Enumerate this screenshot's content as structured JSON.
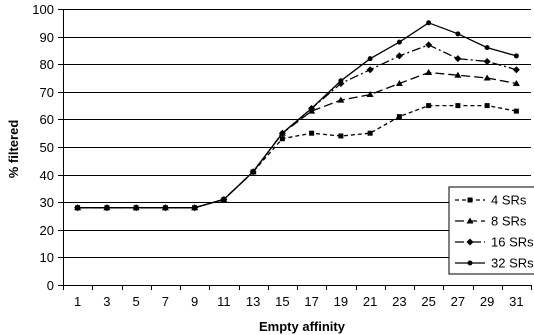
{
  "chart_data": {
    "type": "line",
    "xlabel": "Empty affinity",
    "ylabel": "% filtered",
    "xlim": [
      0,
      32
    ],
    "ylim": [
      0,
      100
    ],
    "x_ticks": [
      1,
      3,
      5,
      7,
      9,
      11,
      13,
      15,
      17,
      19,
      21,
      23,
      25,
      27,
      29,
      31
    ],
    "y_ticks": [
      0,
      10,
      20,
      30,
      40,
      50,
      60,
      70,
      80,
      90,
      100
    ],
    "grid": "horizontal",
    "legend_position": "bottom-right",
    "x": [
      1,
      3,
      5,
      7,
      9,
      11,
      13,
      15,
      17,
      19,
      21,
      23,
      25,
      27,
      29,
      31
    ],
    "series": [
      {
        "name": "4 SRs",
        "marker": "square",
        "dash": "4,3",
        "values": [
          28,
          28,
          28,
          28,
          28,
          31,
          41,
          53,
          55,
          54,
          55,
          61,
          65,
          65,
          65,
          63
        ]
      },
      {
        "name": "8 SRs",
        "marker": "triangle",
        "dash": "9,4",
        "values": [
          28,
          28,
          28,
          28,
          28,
          31,
          41,
          55,
          63,
          67,
          69,
          73,
          77,
          76,
          75,
          73
        ]
      },
      {
        "name": "16 SRs",
        "marker": "diamond",
        "dash": "9,3,2,3",
        "values": [
          28,
          28,
          28,
          28,
          28,
          31,
          41,
          55,
          64,
          73,
          78,
          83,
          87,
          82,
          81,
          78
        ]
      },
      {
        "name": "32 SRs",
        "marker": "circle",
        "dash": "",
        "values": [
          28,
          28,
          28,
          28,
          28,
          31,
          41,
          55,
          64,
          74,
          82,
          88,
          95,
          91,
          86,
          83
        ]
      }
    ]
  }
}
